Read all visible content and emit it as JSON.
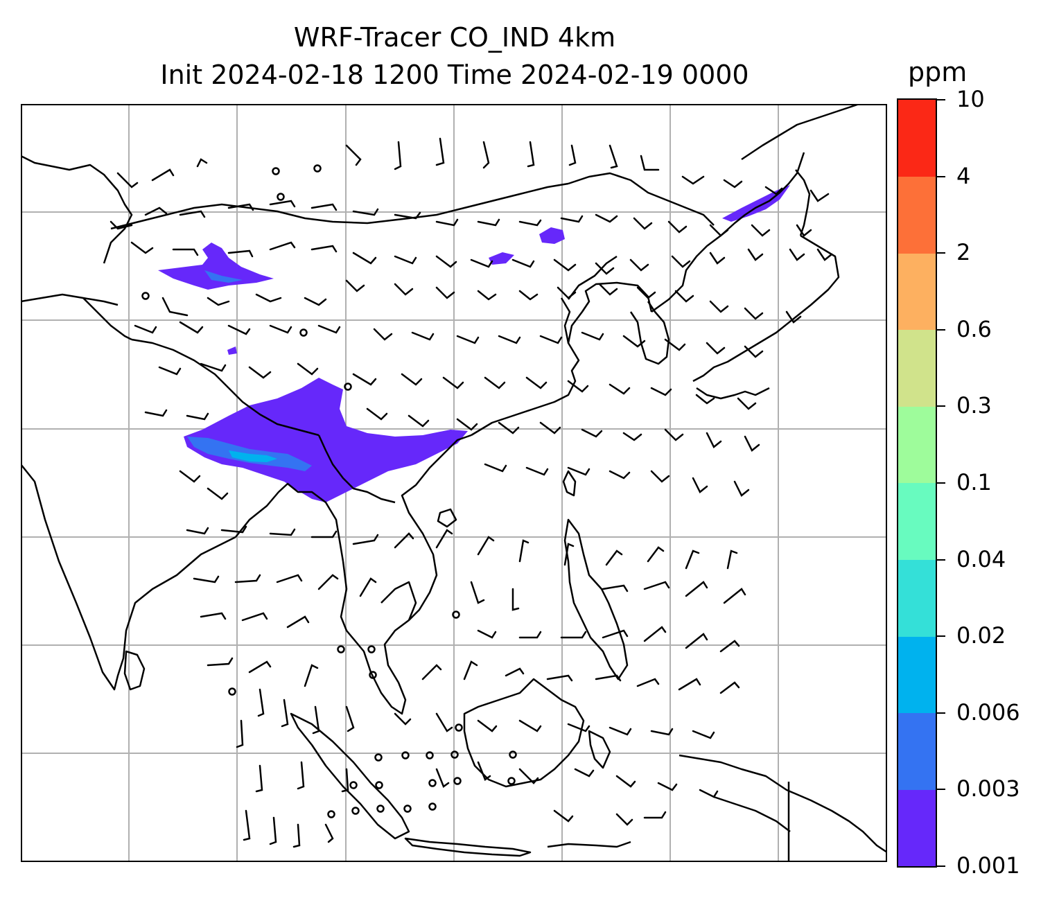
{
  "title": {
    "line1": "WRF-Tracer CO_IND 4km",
    "line2": "Init 2024-02-18 1200 Time 2024-02-19 0000"
  },
  "colorbar": {
    "unit": "ppm",
    "levels": [
      "0.001",
      "0.003",
      "0.006",
      "0.02",
      "0.04",
      "0.1",
      "0.3",
      "0.6",
      "2",
      "4",
      "10"
    ],
    "colors": [
      "#6628fa",
      "#3473f2",
      "#00b2ee",
      "#34e0d8",
      "#68fbbf",
      "#9efc9b",
      "#d0e38b",
      "#fdb060",
      "#fd7038",
      "#fb2816"
    ]
  },
  "map": {
    "colors": {
      "coast": "#000000",
      "grid": "#b0b0b0",
      "tracer_low": "#6628fa",
      "tracer_mid": "#3473f2",
      "tracer_high": "#00b2ee"
    },
    "plume_levels_ppm": [
      0.001,
      0.003,
      0.006
    ],
    "wind_symbol": "wind-barb",
    "calm_symbol": "calm-circle"
  }
}
